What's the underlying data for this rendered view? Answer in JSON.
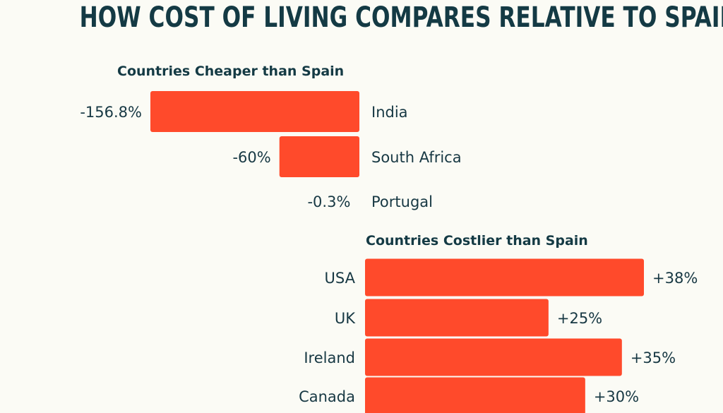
{
  "title": "HOW COST OF LIVING COMPARES RELATIVE TO SPAIN",
  "colors": {
    "bar": "#ff4a2b",
    "text": "#173843",
    "background": "#fbfbf5"
  },
  "chart_data": [
    {
      "type": "bar",
      "orientation": "horizontal",
      "title": "Countries Cheaper than Spain",
      "categories": [
        "India",
        "South Africa",
        "Portugal"
      ],
      "values": [
        -156.8,
        -60,
        -0.3
      ],
      "labels": [
        "-156.8%",
        "-60%",
        "-0.3%"
      ]
    },
    {
      "type": "bar",
      "orientation": "horizontal",
      "title": "Countries Costlier than Spain",
      "categories": [
        "USA",
        "UK",
        "Ireland",
        "Canada"
      ],
      "values": [
        38,
        25,
        35,
        30
      ],
      "labels": [
        "+38%",
        "+25%",
        "+35%",
        "+30%"
      ]
    }
  ]
}
